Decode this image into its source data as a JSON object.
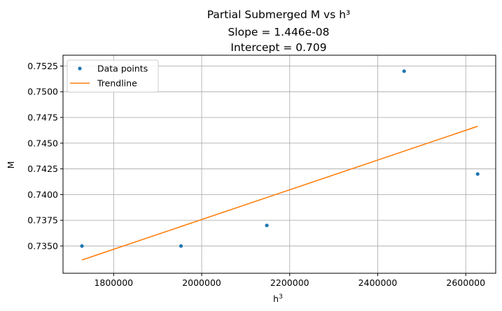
{
  "chart_data": {
    "type": "scatter",
    "title_lines": [
      "Partial Submerged M vs h³",
      "Slope = 1.446e-08",
      "Intercept = 0.709"
    ],
    "xlabel_base": "h",
    "xlabel_sup": "3",
    "ylabel": "M",
    "xlim": [
      1685000,
      2668000
    ],
    "ylim": [
      0.73235,
      0.75355
    ],
    "x_ticks": [
      1800000,
      2000000,
      2200000,
      2400000,
      2600000
    ],
    "x_tick_labels": [
      "1800000",
      "2000000",
      "2200000",
      "2400000",
      "2600000"
    ],
    "y_ticks": [
      0.735,
      0.7375,
      0.74,
      0.7425,
      0.745,
      0.7475,
      0.75,
      0.7525
    ],
    "y_tick_labels": [
      "0.7350",
      "0.7375",
      "0.7400",
      "0.7425",
      "0.7450",
      "0.7475",
      "0.7500",
      "0.7525"
    ],
    "grid": true,
    "legend_position": "upper-left",
    "series": [
      {
        "name": "Data points",
        "kind": "points",
        "color": "#1f77b4",
        "points": [
          {
            "x": 1728000,
            "y": 0.735
          },
          {
            "x": 1953000,
            "y": 0.735
          },
          {
            "x": 2148000,
            "y": 0.737
          },
          {
            "x": 2460000,
            "y": 0.752
          },
          {
            "x": 2627000,
            "y": 0.742
          }
        ]
      },
      {
        "name": "Trendline",
        "kind": "line",
        "color": "#ff7f0e",
        "points": [
          {
            "x": 1728000,
            "y": 0.73364
          },
          {
            "x": 2627000,
            "y": 0.74664
          }
        ]
      }
    ]
  }
}
